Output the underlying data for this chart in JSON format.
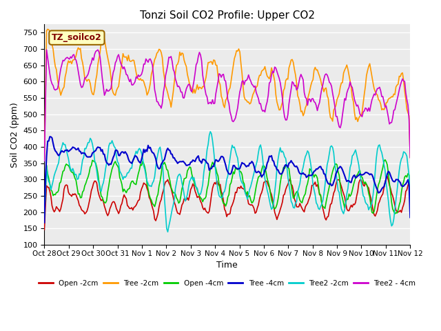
{
  "title": "Tonzi Soil CO2 Profile: Upper CO2",
  "xlabel": "Time",
  "ylabel": "Soil CO2 (ppm)",
  "ylim": [
    100,
    775
  ],
  "yticks": [
    100,
    150,
    200,
    250,
    300,
    350,
    400,
    450,
    500,
    550,
    600,
    650,
    700,
    750
  ],
  "x_labels": [
    "Oct 28",
    "Oct 29",
    "Oct 30",
    "Oct 31",
    "Nov 1",
    "Nov 2",
    "Nov 3",
    "Nov 4",
    "Nov 5",
    "Nov 6",
    "Nov 7",
    "Nov 8",
    "Nov 9",
    "Nov 10",
    "Nov 11",
    "Nov 12"
  ],
  "n_points": 336,
  "legend_label": "TZ_soilco2",
  "legend_box_color": "#ffffc0",
  "legend_box_edge": "#996600",
  "legend_text_color": "#800000",
  "series": {
    "Open_2cm": {
      "color": "#cc0000",
      "lw": 1.2
    },
    "Tree_2cm": {
      "color": "#ff9900",
      "lw": 1.2
    },
    "Open_4cm": {
      "color": "#00cc00",
      "lw": 1.2
    },
    "Tree_4cm": {
      "color": "#0000cc",
      "lw": 1.5
    },
    "Tree2_2cm": {
      "color": "#00cccc",
      "lw": 1.2
    },
    "Tree2_4cm": {
      "color": "#cc00cc",
      "lw": 1.2
    }
  },
  "line_legend": [
    {
      "label": "Open -2cm",
      "color": "#cc0000"
    },
    {
      "label": "Tree -2cm",
      "color": "#ff9900"
    },
    {
      "label": "Open -4cm",
      "color": "#00cc00"
    },
    {
      "label": "Tree -4cm",
      "color": "#0000cc"
    },
    {
      "label": "Tree2 -2cm",
      "color": "#00cccc"
    },
    {
      "label": "Tree2 - 4cm",
      "color": "#cc00cc"
    }
  ],
  "bg_color": "#ffffff",
  "plot_bg_color": "#ebebeb",
  "grid_color": "#ffffff",
  "seed": 42
}
